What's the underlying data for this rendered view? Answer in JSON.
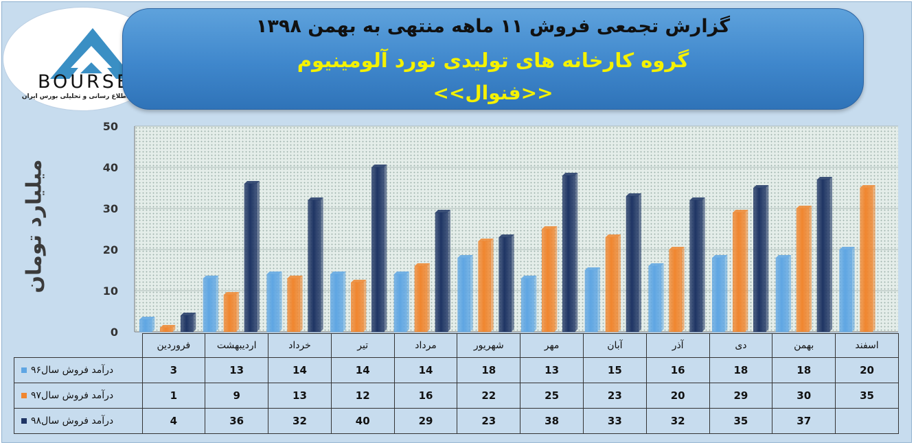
{
  "header": {
    "line1": "گزارش تجمعی فروش  ۱۱ ماهه منتهی به بهمن ۱۳۹۸",
    "line2": "گروه کارخانه های تولیدی نورد آلومینیوم",
    "line3": "<<فنوال>>"
  },
  "logo": {
    "text": "BOURSE",
    "subtitle": "پایگاه اطلاع رسانی و تحلیلی بورس ایران",
    "color": "#3a8fc4"
  },
  "colors": {
    "series96": "#5fa6e3",
    "series97": "#f0862f",
    "series98": "#1f3564",
    "banner": "#3f87cc",
    "title_yellow": "#f4f100"
  },
  "chart_data": {
    "type": "bar",
    "ylabel": "میلیارد تومان",
    "ylim": [
      0,
      50
    ],
    "yticks": [
      0,
      10,
      20,
      30,
      40,
      50
    ],
    "grid": true,
    "categories": [
      "فروردین",
      "اردیبهشت",
      "خرداد",
      "تیر",
      "مرداد",
      "شهریور",
      "مهر",
      "آبان",
      "آذر",
      "دی",
      "بهمن",
      "اسفند"
    ],
    "series": [
      {
        "name": "درآمد فروش سال۹۶",
        "values": [
          3,
          13,
          14,
          14,
          14,
          18,
          13,
          15,
          16,
          18,
          18,
          20
        ]
      },
      {
        "name": "درآمد فروش سال۹۷",
        "values": [
          1,
          9,
          13,
          12,
          16,
          22,
          25,
          23,
          20,
          29,
          30,
          35
        ]
      },
      {
        "name": "درآمد فروش سال۹۸",
        "values": [
          4,
          36,
          32,
          40,
          29,
          23,
          38,
          33,
          32,
          35,
          37,
          null
        ]
      }
    ]
  }
}
